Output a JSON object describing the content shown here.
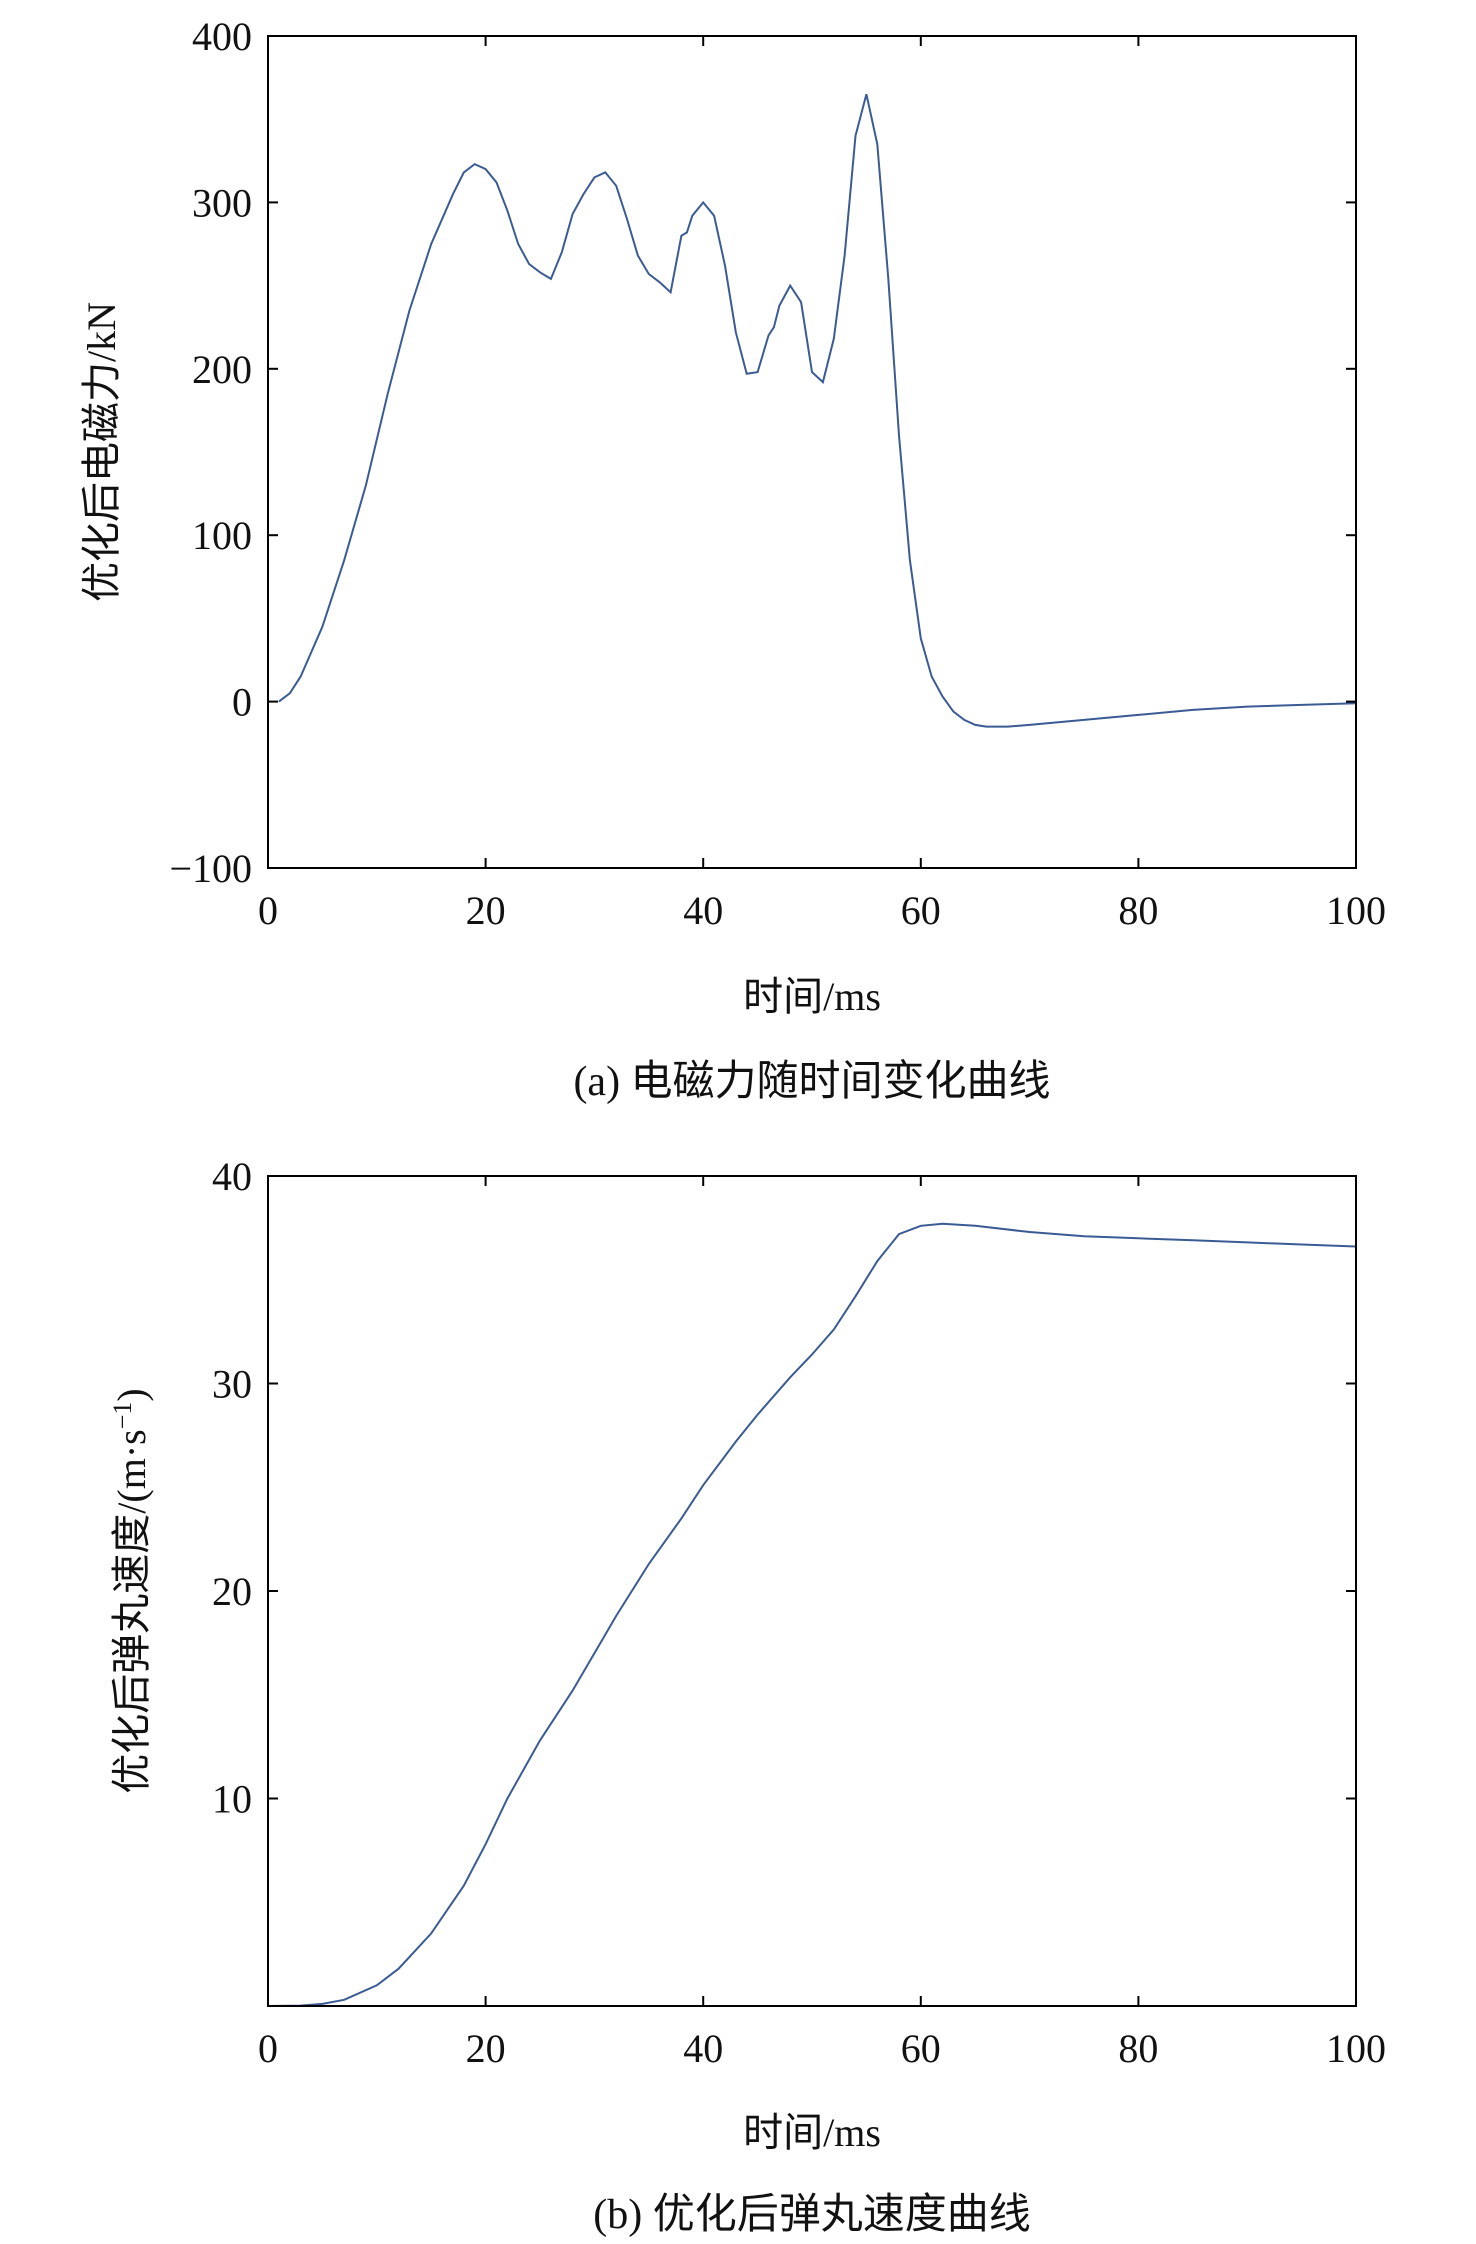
{
  "chart_data": [
    {
      "type": "line",
      "caption": "(a) 电磁力随时间变化曲线",
      "xlabel": "时间/ms",
      "ylabel": "优化后电磁力/kN",
      "xlim": [
        0,
        100
      ],
      "ylim": [
        -100,
        400
      ],
      "xticks": [
        "0",
        "20",
        "40",
        "60",
        "80",
        "100"
      ],
      "yticks": [
        "−100",
        "0",
        "100",
        "200",
        "300",
        "400"
      ],
      "grid": false,
      "series": [
        {
          "color": "#3a5b93",
          "x": [
            1,
            2,
            3,
            5,
            7,
            9,
            11,
            13,
            15,
            17,
            18,
            19,
            20,
            21,
            22,
            23,
            24,
            25,
            26,
            27,
            28,
            29,
            30,
            31,
            32,
            33,
            34,
            35,
            36,
            37,
            38,
            38.5,
            39,
            40,
            41,
            42,
            43,
            44,
            45,
            46,
            46.5,
            47,
            48,
            49,
            50,
            51,
            52,
            53,
            54,
            55,
            56,
            57,
            58,
            59,
            60,
            61,
            62,
            63,
            64,
            65,
            66,
            67,
            68,
            70,
            75,
            80,
            85,
            90,
            95,
            100
          ],
          "y": [
            0,
            5,
            15,
            45,
            85,
            130,
            185,
            235,
            275,
            305,
            318,
            323,
            320,
            312,
            295,
            275,
            263,
            258,
            254,
            270,
            293,
            305,
            315,
            318,
            310,
            290,
            268,
            257,
            252,
            246,
            280,
            282,
            292,
            300,
            292,
            262,
            222,
            197,
            198,
            220,
            225,
            238,
            250,
            240,
            198,
            192,
            218,
            268,
            340,
            365,
            335,
            255,
            160,
            85,
            38,
            15,
            3,
            -6,
            -11,
            -14,
            -15,
            -15,
            -15,
            -14,
            -11,
            -8,
            -5,
            -3,
            -2,
            -1
          ]
        }
      ]
    },
    {
      "type": "line",
      "caption": "(b) 优化后弹丸速度曲线",
      "xlabel": "时间/ms",
      "ylabel": "优化后弹丸速度/(m·s",
      "ylabel_sup": "−1",
      "ylabel_end": ")",
      "xlim": [
        0,
        100
      ],
      "ylim": [
        0,
        40
      ],
      "xticks": [
        "0",
        "20",
        "40",
        "60",
        "80",
        "100"
      ],
      "yticks": [
        "10",
        "20",
        "30",
        "40"
      ],
      "grid": false,
      "series": [
        {
          "color": "#3a5b93",
          "x": [
            0,
            3,
            5,
            7,
            10,
            12,
            15,
            18,
            20,
            22,
            25,
            28,
            30,
            32,
            35,
            38,
            40,
            43,
            45,
            48,
            50,
            52,
            54,
            56,
            58,
            60,
            62,
            65,
            70,
            75,
            80,
            85,
            90,
            95,
            100
          ],
          "y": [
            0,
            0.02,
            0.1,
            0.3,
            1.0,
            1.8,
            3.5,
            5.8,
            7.8,
            10.0,
            12.8,
            15.2,
            17.0,
            18.8,
            21.3,
            23.5,
            25.1,
            27.2,
            28.5,
            30.3,
            31.4,
            32.6,
            34.2,
            35.9,
            37.2,
            37.6,
            37.7,
            37.6,
            37.3,
            37.1,
            37.0,
            36.9,
            36.8,
            36.7,
            36.6
          ]
        }
      ]
    }
  ]
}
